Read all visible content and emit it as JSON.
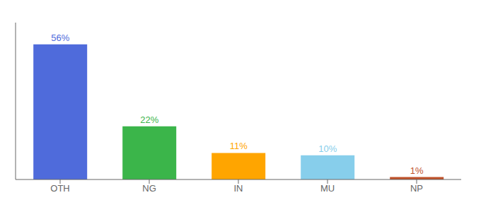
{
  "chart_data": {
    "type": "bar",
    "categories": [
      "OTH",
      "NG",
      "IN",
      "MU",
      "NP"
    ],
    "values": [
      56,
      22,
      11,
      10,
      1
    ],
    "value_labels": [
      "56%",
      "22%",
      "11%",
      "10%",
      "1%"
    ],
    "colors": [
      "#4F6BDB",
      "#3BB54A",
      "#FFA500",
      "#87CEEB",
      "#C0522A"
    ],
    "ylim": [
      0,
      65
    ],
    "grid": false,
    "data_labels": true,
    "tick_labels": "x"
  }
}
